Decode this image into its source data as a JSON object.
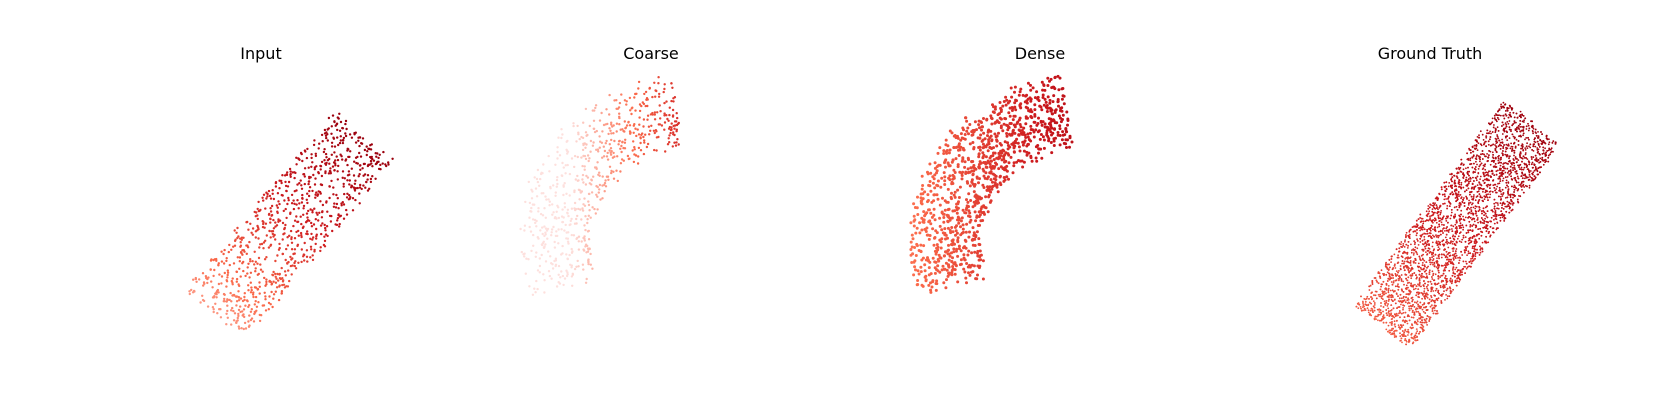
{
  "figure": {
    "panels": [
      {
        "id": "input",
        "title": "Input",
        "style": "sparse-regular"
      },
      {
        "id": "coarse",
        "title": "Coarse",
        "style": "sparse-light"
      },
      {
        "id": "dense",
        "title": "Dense",
        "style": "medium"
      },
      {
        "id": "ground_truth",
        "title": "Ground Truth",
        "style": "very-dense"
      }
    ],
    "colormap": [
      "#fde0dd",
      "#fb6a4a",
      "#cb181d",
      "#99000d"
    ]
  }
}
